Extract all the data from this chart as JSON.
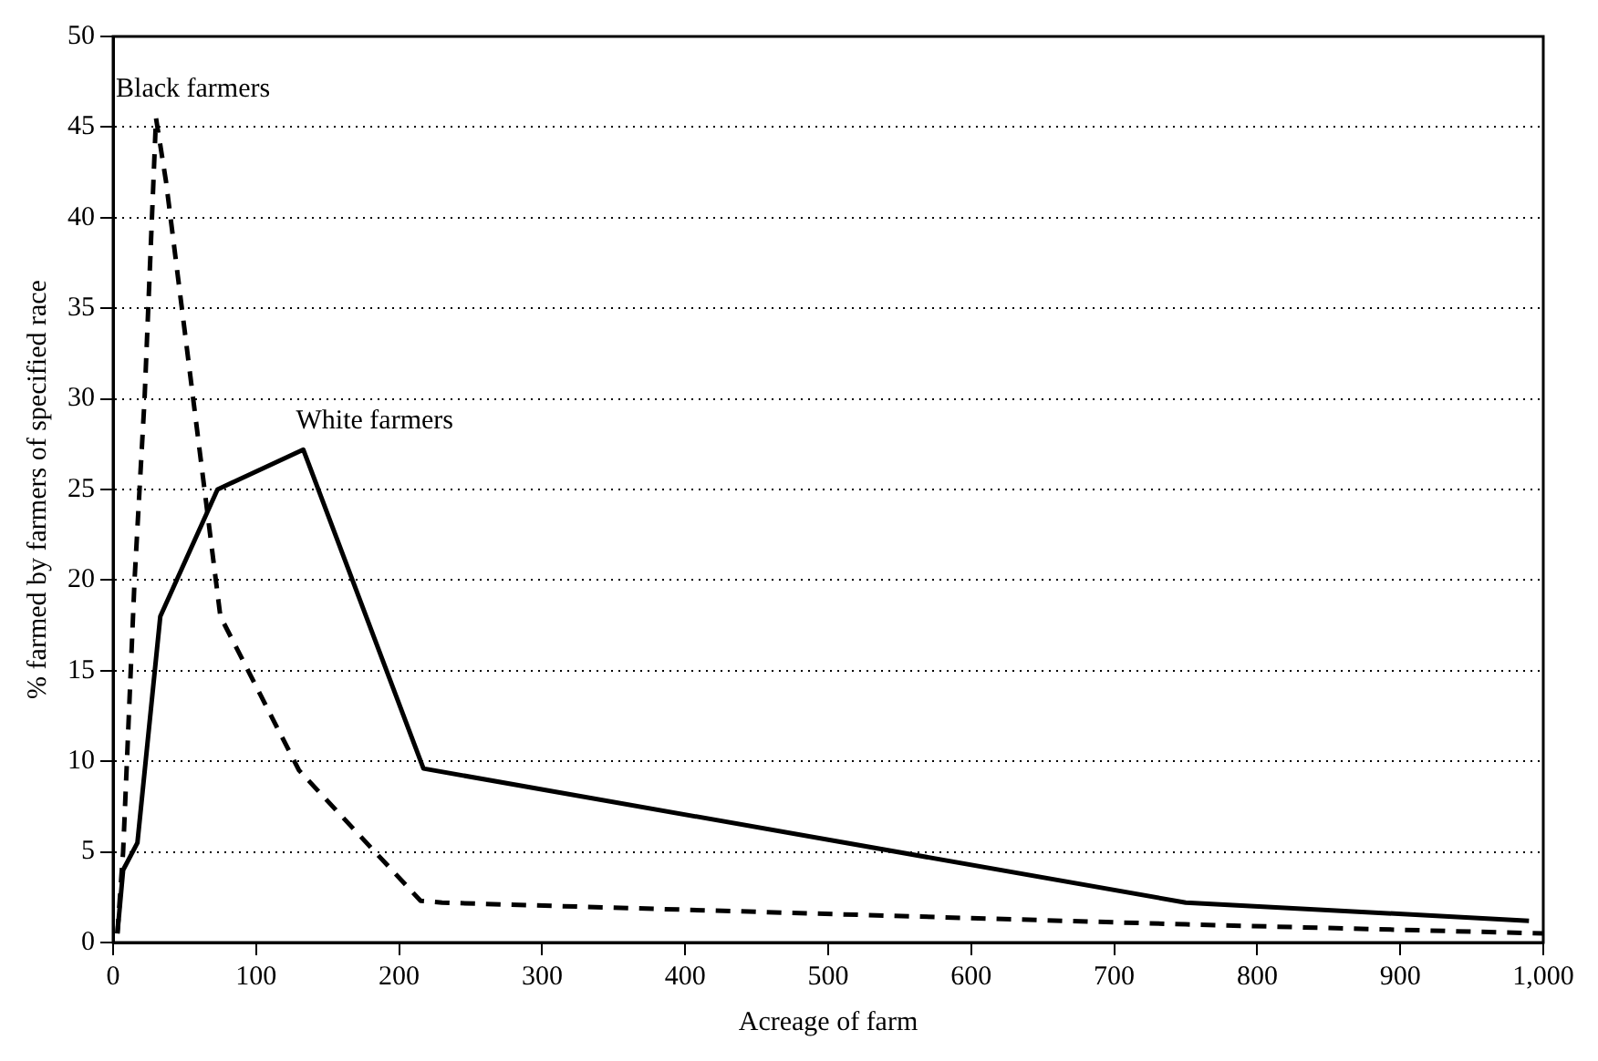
{
  "chart_data": {
    "type": "line",
    "xlabel": "Acreage of farm",
    "ylabel": "% farmed by farmers of specified race",
    "xlim": [
      0,
      1000
    ],
    "xticks": [
      0,
      100,
      200,
      300,
      400,
      500,
      600,
      700,
      800,
      900,
      {
        "value": 1000,
        "label": "1,000"
      }
    ],
    "ylim": [
      0,
      50
    ],
    "yticks": [
      0,
      5,
      10,
      15,
      20,
      25,
      30,
      35,
      40,
      45,
      50
    ],
    "grid": "y",
    "legend": false,
    "marker": "none",
    "series": [
      {
        "name": "Black farmers",
        "color": "#000000",
        "line_style": "dashed",
        "x": [
          3,
          7,
          15,
          22,
          30,
          37,
          75,
          130,
          215,
          230,
          750,
          1000
        ],
        "values": [
          0.5,
          5,
          20,
          30,
          45.5,
          42,
          18,
          9.5,
          2.3,
          2.2,
          1,
          0.5
        ]
      },
      {
        "name": "White farmers",
        "color": "#000000",
        "line_style": "solid",
        "x": [
          3,
          7,
          17,
          33,
          73,
          133,
          217,
          750,
          990
        ],
        "values": [
          0.5,
          4,
          5.5,
          18,
          25,
          27.2,
          9.6,
          2.2,
          1.2
        ]
      }
    ]
  }
}
